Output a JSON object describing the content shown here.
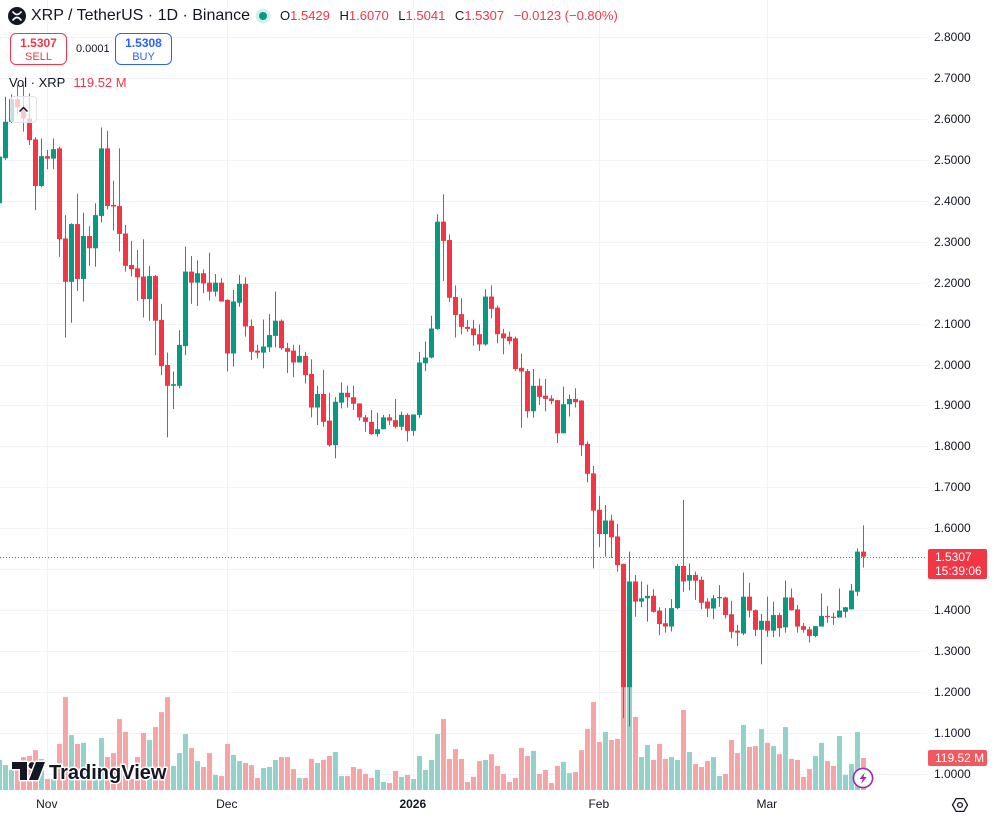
{
  "header": {
    "title": "XRP / TetherUS · 1D · Binance",
    "icons": {
      "symbol": "xrp-logo-icon",
      "market_status": "market-open-dot-icon"
    },
    "ohlc": {
      "o_label": "O",
      "o": "1.5429",
      "h_label": "H",
      "h": "1.6070",
      "l_label": "L",
      "l": "1.5041",
      "c_label": "C",
      "c": "1.5307",
      "change": "−0.0123 (−0.80%)"
    }
  },
  "trade": {
    "sell_price": "1.5307",
    "sell_label": "SELL",
    "spread": "0.0001",
    "buy_price": "1.5308",
    "buy_label": "BUY"
  },
  "volume_legend": {
    "label": "Vol · XRP",
    "value": "119.52 M",
    "collapse_icon": "chevron-up-icon"
  },
  "price_scale": {
    "labels": [
      {
        "text": "2.8000",
        "value": 2.8
      },
      {
        "text": "2.7000",
        "value": 2.7
      },
      {
        "text": "2.6000",
        "value": 2.6
      },
      {
        "text": "2.5000",
        "value": 2.5
      },
      {
        "text": "2.4000",
        "value": 2.4
      },
      {
        "text": "2.3000",
        "value": 2.3
      },
      {
        "text": "2.2000",
        "value": 2.2
      },
      {
        "text": "2.1000",
        "value": 2.1
      },
      {
        "text": "2.0000",
        "value": 2.0
      },
      {
        "text": "1.9000",
        "value": 1.9
      },
      {
        "text": "1.8000",
        "value": 1.8
      },
      {
        "text": "1.7000",
        "value": 1.7
      },
      {
        "text": "1.6000",
        "value": 1.6
      },
      {
        "text": "1.4000",
        "value": 1.4
      },
      {
        "text": "1.3000",
        "value": 1.3
      },
      {
        "text": "1.2000",
        "value": 1.2
      },
      {
        "text": "1.1000",
        "value": 1.1
      },
      {
        "text": "1.0000",
        "value": 1.0
      }
    ],
    "current_price": "1.5307",
    "countdown": "15:39:06",
    "volume_value": "119.52 M",
    "settings_icon": "settings-hexagon-icon"
  },
  "time_scale": {
    "labels": [
      {
        "text": "Nov",
        "index": 8,
        "bold": false
      },
      {
        "text": "Dec",
        "index": 38,
        "bold": false
      },
      {
        "text": "2026",
        "index": 69,
        "bold": true
      },
      {
        "text": "Feb",
        "index": 100,
        "bold": false
      },
      {
        "text": "Mar",
        "index": 128,
        "bold": false
      }
    ]
  },
  "branding": {
    "logo_text": "TradingView",
    "logo_icon": "tradingview-logo-icon"
  },
  "overlay": {
    "lightning_icon": "lightning-icon"
  },
  "colors": {
    "up": "#089981",
    "down": "#f23645",
    "volume_up": "#92d2ca",
    "volume_down": "#f5a5a5",
    "buy": "#2962ff",
    "grid": "#f0f3fa",
    "text": "#131722",
    "alert": "#9c27b0"
  },
  "chart_data": {
    "type": "candlestick",
    "title": "XRP / TetherUS · 1D · Binance",
    "interval": "1D",
    "xlabel": "",
    "ylabel": "",
    "x_ticks": [
      {
        "label": "Nov",
        "index": 8
      },
      {
        "label": "Dec",
        "index": 38
      },
      {
        "label": "2026",
        "index": 69
      },
      {
        "label": "Feb",
        "index": 100
      },
      {
        "label": "Mar",
        "index": 128
      }
    ],
    "y_ticks": [
      2.8,
      2.7,
      2.6,
      2.5,
      2.4,
      2.3,
      2.2,
      2.1,
      2.0,
      1.9,
      1.8,
      1.7,
      1.6,
      1.5,
      1.4,
      1.3,
      1.2,
      1.1,
      1.0
    ],
    "ylim": [
      0.956,
      2.89
    ],
    "grid": true,
    "legend_position": "top-left",
    "ohlc_order": [
      "open",
      "high",
      "low",
      "close"
    ],
    "candles": [
      [
        2.394,
        2.52,
        2.39,
        2.508
      ],
      [
        2.504,
        2.654,
        2.5,
        2.593
      ],
      [
        2.593,
        2.66,
        2.59,
        2.648
      ],
      [
        2.648,
        2.683,
        2.612,
        2.628
      ],
      [
        2.628,
        2.683,
        2.569,
        2.601
      ],
      [
        2.601,
        2.662,
        2.536,
        2.548
      ],
      [
        2.55,
        2.555,
        2.377,
        2.436
      ],
      [
        2.436,
        2.552,
        2.433,
        2.509
      ],
      [
        2.509,
        2.524,
        2.477,
        2.503
      ],
      [
        2.503,
        2.552,
        2.477,
        2.526
      ],
      [
        2.528,
        2.532,
        2.263,
        2.306
      ],
      [
        2.308,
        2.365,
        2.066,
        2.202
      ],
      [
        2.202,
        2.345,
        2.102,
        2.343
      ],
      [
        2.343,
        2.417,
        2.18,
        2.209
      ],
      [
        2.209,
        2.371,
        2.154,
        2.314
      ],
      [
        2.314,
        2.338,
        2.241,
        2.284
      ],
      [
        2.284,
        2.394,
        2.239,
        2.365
      ],
      [
        2.363,
        2.579,
        2.347,
        2.528
      ],
      [
        2.528,
        2.571,
        2.379,
        2.387
      ],
      [
        2.39,
        2.449,
        2.327,
        2.386
      ],
      [
        2.387,
        2.528,
        2.276,
        2.319
      ],
      [
        2.32,
        2.341,
        2.227,
        2.241
      ],
      [
        2.243,
        2.302,
        2.215,
        2.233
      ],
      [
        2.235,
        2.28,
        2.156,
        2.213
      ],
      [
        2.215,
        2.306,
        2.115,
        2.16
      ],
      [
        2.16,
        2.241,
        2.107,
        2.216
      ],
      [
        2.216,
        2.219,
        2.023,
        2.107
      ],
      [
        2.109,
        2.148,
        1.974,
        1.996
      ],
      [
        1.999,
        2.029,
        1.822,
        1.948
      ],
      [
        1.948,
        1.983,
        1.891,
        1.952
      ],
      [
        1.948,
        2.084,
        1.942,
        2.048
      ],
      [
        2.045,
        2.288,
        2.023,
        2.227
      ],
      [
        2.227,
        2.265,
        2.148,
        2.2
      ],
      [
        2.2,
        2.254,
        2.143,
        2.223
      ],
      [
        2.223,
        2.232,
        2.174,
        2.198
      ],
      [
        2.2,
        2.273,
        2.156,
        2.178
      ],
      [
        2.178,
        2.221,
        2.166,
        2.2
      ],
      [
        2.2,
        2.211,
        2.154,
        2.154
      ],
      [
        2.158,
        2.159,
        1.983,
        2.027
      ],
      [
        2.027,
        2.182,
        1.995,
        2.154
      ],
      [
        2.151,
        2.219,
        2.141,
        2.197
      ],
      [
        2.197,
        2.213,
        2.068,
        2.093
      ],
      [
        2.094,
        2.11,
        2.011,
        2.031
      ],
      [
        2.034,
        2.048,
        2.015,
        2.029
      ],
      [
        2.029,
        2.11,
        1.991,
        2.044
      ],
      [
        2.042,
        2.123,
        2.031,
        2.072
      ],
      [
        2.07,
        2.178,
        2.042,
        2.107
      ],
      [
        2.107,
        2.11,
        2.036,
        2.04
      ],
      [
        2.04,
        2.053,
        1.979,
        2.031
      ],
      [
        2.034,
        2.048,
        1.969,
        2.005
      ],
      [
        2.005,
        2.048,
        2.005,
        2.021
      ],
      [
        2.021,
        2.031,
        1.954,
        1.974
      ],
      [
        1.977,
        2.013,
        1.871,
        1.895
      ],
      [
        1.895,
        1.948,
        1.852,
        1.928
      ],
      [
        1.928,
        1.987,
        1.848,
        1.86
      ],
      [
        1.863,
        1.931,
        1.799,
        1.803
      ],
      [
        1.803,
        1.92,
        1.771,
        1.909
      ],
      [
        1.907,
        1.956,
        1.893,
        1.931
      ],
      [
        1.931,
        1.948,
        1.895,
        1.92
      ],
      [
        1.92,
        1.948,
        1.889,
        1.904
      ],
      [
        1.905,
        1.905,
        1.863,
        1.871
      ],
      [
        1.871,
        1.877,
        1.836,
        1.86
      ],
      [
        1.86,
        1.889,
        1.828,
        1.83
      ],
      [
        1.83,
        1.882,
        1.824,
        1.842
      ],
      [
        1.842,
        1.877,
        1.842,
        1.871
      ],
      [
        1.871,
        1.879,
        1.852,
        1.863
      ],
      [
        1.864,
        1.916,
        1.844,
        1.848
      ],
      [
        1.848,
        1.885,
        1.84,
        1.877
      ],
      [
        1.877,
        1.881,
        1.812,
        1.838
      ],
      [
        1.838,
        1.878,
        1.826,
        1.878
      ],
      [
        1.877,
        2.031,
        1.869,
        2.005
      ],
      [
        2.003,
        2.056,
        1.984,
        2.017
      ],
      [
        2.017,
        2.119,
        2.015,
        2.088
      ],
      [
        2.087,
        2.367,
        2.085,
        2.349
      ],
      [
        2.349,
        2.416,
        2.204,
        2.302
      ],
      [
        2.304,
        2.318,
        2.152,
        2.163
      ],
      [
        2.165,
        2.193,
        2.066,
        2.121
      ],
      [
        2.123,
        2.162,
        2.074,
        2.092
      ],
      [
        2.092,
        2.109,
        2.08,
        2.087
      ],
      [
        2.088,
        2.109,
        2.046,
        2.072
      ],
      [
        2.074,
        2.098,
        2.033,
        2.049
      ],
      [
        2.049,
        2.184,
        2.046,
        2.166
      ],
      [
        2.166,
        2.193,
        2.113,
        2.136
      ],
      [
        2.139,
        2.144,
        2.052,
        2.074
      ],
      [
        2.076,
        2.087,
        2.025,
        2.064
      ],
      [
        2.068,
        2.08,
        2.049,
        2.057
      ],
      [
        2.064,
        2.068,
        1.984,
        1.989
      ],
      [
        1.992,
        2.027,
        1.846,
        1.983
      ],
      [
        1.984,
        1.989,
        1.87,
        1.886
      ],
      [
        1.886,
        1.989,
        1.87,
        1.948
      ],
      [
        1.948,
        1.966,
        1.901,
        1.921
      ],
      [
        1.924,
        1.965,
        1.886,
        1.916
      ],
      [
        1.917,
        1.925,
        1.903,
        1.911
      ],
      [
        1.913,
        1.913,
        1.808,
        1.832
      ],
      [
        1.832,
        1.946,
        1.832,
        1.903
      ],
      [
        1.903,
        1.927,
        1.873,
        1.916
      ],
      [
        1.916,
        1.942,
        1.895,
        1.908
      ],
      [
        1.912,
        1.913,
        1.777,
        1.803
      ],
      [
        1.806,
        1.812,
        1.712,
        1.733
      ],
      [
        1.734,
        1.752,
        1.502,
        1.643
      ],
      [
        1.645,
        1.679,
        1.554,
        1.586
      ],
      [
        1.586,
        1.657,
        1.531,
        1.619
      ],
      [
        1.619,
        1.633,
        1.527,
        1.578
      ],
      [
        1.58,
        1.611,
        1.494,
        1.51
      ],
      [
        1.513,
        1.513,
        1.136,
        1.212
      ],
      [
        1.212,
        1.543,
        1.116,
        1.47
      ],
      [
        1.47,
        1.486,
        1.384,
        1.421
      ],
      [
        1.421,
        1.47,
        1.407,
        1.429
      ],
      [
        1.429,
        1.462,
        1.372,
        1.435
      ],
      [
        1.435,
        1.451,
        1.394,
        1.396
      ],
      [
        1.399,
        1.407,
        1.339,
        1.366
      ],
      [
        1.368,
        1.405,
        1.345,
        1.36
      ],
      [
        1.36,
        1.427,
        1.348,
        1.405
      ],
      [
        1.405,
        1.513,
        1.402,
        1.508
      ],
      [
        1.508,
        1.669,
        1.445,
        1.47
      ],
      [
        1.472,
        1.514,
        1.448,
        1.486
      ],
      [
        1.486,
        1.494,
        1.425,
        1.472
      ],
      [
        1.474,
        1.482,
        1.402,
        1.418
      ],
      [
        1.421,
        1.429,
        1.383,
        1.404
      ],
      [
        1.404,
        1.437,
        1.378,
        1.429
      ],
      [
        1.429,
        1.461,
        1.408,
        1.432
      ],
      [
        1.431,
        1.433,
        1.38,
        1.388
      ],
      [
        1.39,
        1.423,
        1.331,
        1.347
      ],
      [
        1.35,
        1.364,
        1.312,
        1.345
      ],
      [
        1.343,
        1.492,
        1.339,
        1.433
      ],
      [
        1.433,
        1.467,
        1.382,
        1.399
      ],
      [
        1.4,
        1.402,
        1.337,
        1.352
      ],
      [
        1.352,
        1.391,
        1.268,
        1.374
      ],
      [
        1.374,
        1.433,
        1.335,
        1.35
      ],
      [
        1.35,
        1.421,
        1.334,
        1.388
      ],
      [
        1.388,
        1.394,
        1.335,
        1.356
      ],
      [
        1.358,
        1.472,
        1.345,
        1.431
      ],
      [
        1.431,
        1.453,
        1.399,
        1.4
      ],
      [
        1.402,
        1.413,
        1.345,
        1.36
      ],
      [
        1.361,
        1.369,
        1.345,
        1.352
      ],
      [
        1.353,
        1.36,
        1.321,
        1.337
      ],
      [
        1.337,
        1.361,
        1.334,
        1.361
      ],
      [
        1.36,
        1.441,
        1.36,
        1.386
      ],
      [
        1.386,
        1.41,
        1.369,
        1.383
      ],
      [
        1.384,
        1.394,
        1.364,
        1.381
      ],
      [
        1.382,
        1.453,
        1.382,
        1.399
      ],
      [
        1.396,
        1.408,
        1.382,
        1.407
      ],
      [
        1.402,
        1.464,
        1.402,
        1.448
      ],
      [
        1.445,
        1.551,
        1.435,
        1.543
      ],
      [
        1.5429,
        1.607,
        1.5041,
        1.5307
      ]
    ],
    "volume_unit": "M",
    "volume": [
      112,
      93,
      75,
      82,
      123,
      127,
      149,
      116,
      41,
      41,
      172,
      347,
      205,
      172,
      176,
      41,
      41,
      194,
      123,
      138,
      265,
      217,
      41,
      123,
      213,
      187,
      235,
      291,
      347,
      90,
      138,
      209,
      157,
      108,
      86,
      138,
      56,
      52,
      172,
      131,
      108,
      101,
      93,
      45,
      82,
      86,
      112,
      123,
      123,
      78,
      45,
      45,
      116,
      101,
      112,
      127,
      142,
      52,
      52,
      86,
      78,
      60,
      45,
      75,
      30,
      26,
      71,
      49,
      56,
      41,
      127,
      75,
      112,
      209,
      265,
      116,
      153,
      116,
      30,
      49,
      108,
      112,
      134,
      90,
      60,
      30,
      45,
      157,
      127,
      146,
      60,
      75,
      26,
      90,
      105,
      63,
      67,
      149,
      228,
      329,
      179,
      217,
      187,
      191,
      448,
      411,
      273,
      123,
      168,
      112,
      172,
      116,
      123,
      112,
      299,
      142,
      97,
      86,
      108,
      123,
      52,
      60,
      187,
      138,
      243,
      161,
      164,
      228,
      176,
      164,
      134,
      235,
      116,
      112,
      49,
      78,
      127,
      176,
      108,
      90,
      202,
      56,
      97,
      217,
      119.52
    ],
    "last": {
      "open": 1.5429,
      "high": 1.607,
      "low": 1.5041,
      "close": 1.5307,
      "change": -0.0123,
      "change_pct": -0.8,
      "volume": 119.52
    },
    "current_price_line": 1.5307
  }
}
